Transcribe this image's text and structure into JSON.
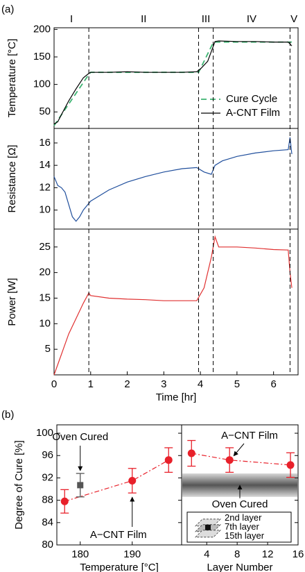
{
  "chart_data": [
    {
      "type": "line",
      "panel_label": "(a)",
      "ylabel": "Temperature [°C]",
      "xlim": [
        0,
        6.67
      ],
      "ylim": [
        20,
        203
      ],
      "yticks": [
        50,
        100,
        150,
        200
      ],
      "phases": [
        "I",
        "II",
        "III",
        "IV",
        "V"
      ],
      "phase_boundaries": [
        0.95,
        3.95,
        4.35,
        6.45
      ],
      "legend": "lower right",
      "series": [
        {
          "name": "Cure Cycle",
          "color": "#3cb371",
          "dash": true,
          "x": [
            0,
            0.95,
            1.0,
            3.95,
            4.35,
            4.4,
            6.5
          ],
          "values": [
            25,
            118,
            122,
            122,
            176,
            177,
            177
          ]
        },
        {
          "name": "A-CNT Film",
          "color": "#000000",
          "dash": false,
          "x": [
            0,
            0.1,
            0.2,
            0.4,
            0.6,
            0.8,
            0.95,
            1.0,
            1.5,
            2,
            2.5,
            3,
            3.5,
            3.9,
            4.0,
            4.2,
            4.3,
            4.4,
            4.5,
            5,
            5.5,
            6,
            6.4,
            6.5
          ],
          "values": [
            28,
            32,
            45,
            70,
            92,
            112,
            120,
            122,
            122,
            123,
            122,
            122,
            122,
            123,
            128,
            142,
            160,
            178,
            179,
            178,
            178,
            177,
            177,
            170
          ]
        }
      ]
    },
    {
      "type": "line",
      "ylabel": "Resistance [Ω]",
      "xlim": [
        0,
        6.67
      ],
      "ylim": [
        8.3,
        17.3
      ],
      "yticks": [
        10,
        12,
        14,
        16
      ],
      "series": [
        {
          "color": "#1f4e9c",
          "dash": false,
          "x": [
            0,
            0.1,
            0.2,
            0.3,
            0.4,
            0.5,
            0.6,
            0.7,
            0.8,
            1,
            1.5,
            2,
            2.5,
            3,
            3.5,
            3.9,
            4.1,
            4.3,
            4.4,
            4.6,
            5,
            5.5,
            6,
            6.4,
            6.45,
            6.5
          ],
          "values": [
            13,
            12.2,
            12.0,
            11.6,
            10.5,
            9.4,
            9.0,
            9.4,
            10.0,
            10.8,
            11.8,
            12.5,
            13.0,
            13.4,
            13.7,
            13.8,
            13.4,
            13.2,
            14.0,
            14.4,
            14.8,
            15.1,
            15.3,
            15.4,
            16.5,
            15.0
          ]
        }
      ]
    },
    {
      "type": "line",
      "ylabel": "Power [W]",
      "xlabel": "Time [hr]",
      "xlim": [
        0,
        6.67
      ],
      "xticks": [
        0,
        1,
        2,
        3,
        4,
        5,
        6
      ],
      "ylim": [
        0,
        28.5
      ],
      "yticks": [
        5,
        10,
        15,
        20,
        25
      ],
      "series": [
        {
          "color": "#e03030",
          "dash": false,
          "x": [
            0,
            0.2,
            0.4,
            0.6,
            0.8,
            0.95,
            1.0,
            1.5,
            2,
            2.5,
            3,
            3.5,
            3.9,
            4.1,
            4.3,
            4.4,
            4.5,
            5,
            5.5,
            6,
            6.4,
            6.45,
            6.5
          ],
          "values": [
            0,
            4,
            8,
            11,
            14,
            16,
            15.5,
            15,
            14.8,
            14.7,
            14.5,
            14.5,
            14.5,
            17,
            23,
            27,
            25,
            25,
            24.8,
            24.5,
            24.4,
            20,
            17
          ]
        }
      ]
    },
    {
      "type": "errorbar",
      "panel_label": "(b)",
      "ylabel": "Degree of Cure [%]",
      "xlabel": "Temperature [°C]",
      "xlim": [
        175.5,
        199.5
      ],
      "xticks": [
        180,
        190
      ],
      "ylim": [
        80,
        101.5
      ],
      "yticks": [
        80,
        84,
        88,
        92,
        96,
        100
      ],
      "series": [
        {
          "name": "A−CNT Film",
          "color": "#e8202a",
          "x": [
            177,
            190,
            197
          ],
          "values": [
            87.8,
            91.5,
            95.2
          ],
          "errors": [
            2.1,
            2.2,
            2.2
          ]
        }
      ],
      "oven": {
        "name": "Oven Cured",
        "color": "#555555",
        "x": 180,
        "value": 90.7,
        "error": 2.1
      }
    },
    {
      "type": "errorbar",
      "xlabel": "Layer Number",
      "xlim": [
        0.7,
        16
      ],
      "xticks": [
        4,
        8,
        12,
        16
      ],
      "ylim": [
        80,
        101.5
      ],
      "series": [
        {
          "name": "A−CNT Film",
          "color": "#e8202a",
          "x": [
            2,
            7,
            15
          ],
          "values": [
            96.4,
            95.2,
            94.3
          ],
          "errors": [
            2.3,
            2.2,
            2.2
          ]
        }
      ],
      "band_label": "Oven Cured",
      "layers": [
        "2nd layer",
        "7th layer",
        "15th layer"
      ]
    }
  ]
}
